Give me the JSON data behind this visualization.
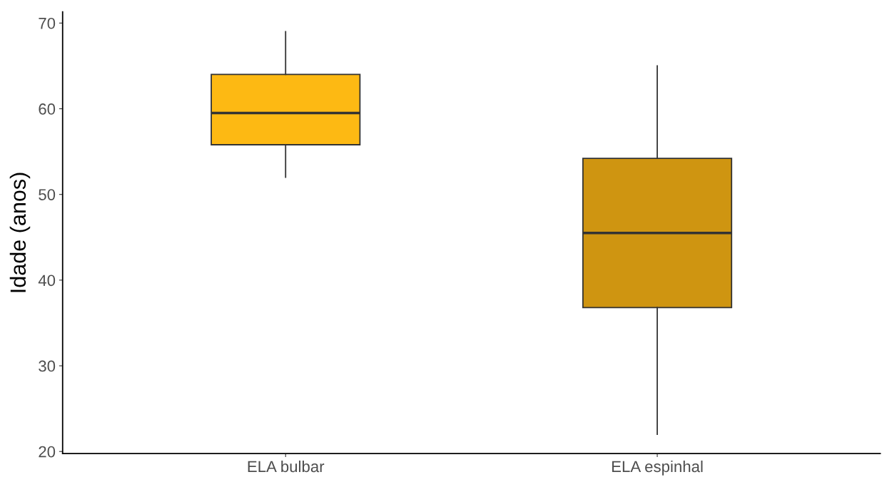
{
  "chart_data": {
    "type": "box",
    "ylabel": "Idade (anos)",
    "categories": [
      "ELA bulbar",
      "ELA espinhal"
    ],
    "boxes": [
      {
        "low": 52,
        "q1": 55.8,
        "median": 59.5,
        "q3": 64,
        "high": 69
      },
      {
        "low": 22,
        "q1": 36.8,
        "median": 45.5,
        "q3": 54.2,
        "high": 65
      }
    ],
    "colors": [
      "#fdb913",
      "#cf9511"
    ],
    "ylim": [
      19.75,
      71.3
    ],
    "yticks": [
      20,
      30,
      40,
      50,
      60,
      70
    ],
    "grid": false,
    "legend": false
  }
}
